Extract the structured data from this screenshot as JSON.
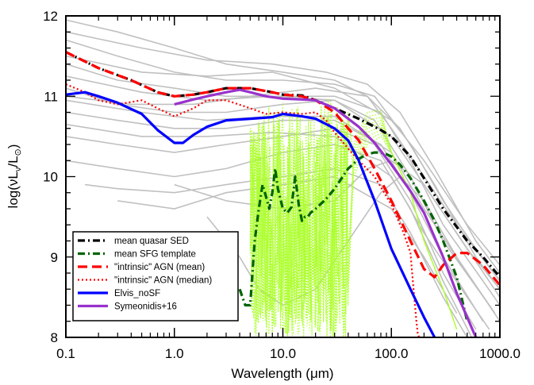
{
  "chart_data": {
    "type": "line",
    "title": "",
    "xlabel": "Wavelength (μm)",
    "ylabel": "log(νL_ν/L_⊙)",
    "xscale": "log",
    "xlim": [
      0.1,
      1000.0
    ],
    "ylim": [
      8,
      12
    ],
    "x_tick_labels": [
      "0.1",
      "1.0",
      "10.0",
      "100.0",
      "1000.0"
    ],
    "y_tick_labels": [
      "8",
      "9",
      "10",
      "11",
      "12"
    ],
    "grid": false,
    "legend_position": "lower-left",
    "series": [
      {
        "name": "mean quasar SED",
        "color": "#000000",
        "style": "dash-dot",
        "x": [
          0.1,
          0.2,
          0.4,
          0.7,
          1.0,
          1.5,
          2.0,
          3.0,
          5.0,
          8.0,
          10.0,
          15.0,
          20.0,
          30.0,
          50.0,
          80.0,
          100.0,
          150.0,
          200.0,
          300.0,
          500.0,
          700.0,
          1000.0
        ],
        "values": [
          11.55,
          11.35,
          11.2,
          11.05,
          11.0,
          11.02,
          11.05,
          11.1,
          11.1,
          11.05,
          11.02,
          11.01,
          10.95,
          10.85,
          10.72,
          10.58,
          10.5,
          10.25,
          9.98,
          9.6,
          9.2,
          9.0,
          8.75
        ]
      },
      {
        "name": "mean SFG template",
        "color": "#006400",
        "style": "dash-dot",
        "x": [
          4.0,
          4.5,
          5.0,
          5.5,
          6.0,
          6.5,
          7.0,
          7.5,
          8.0,
          8.5,
          9.0,
          10.0,
          11.0,
          12.0,
          13.0,
          14.0,
          15.0,
          16.0,
          17.0,
          18.0,
          20.0,
          25.0,
          30.0,
          40.0,
          50.0,
          60.0,
          70.0,
          80.0,
          90.0,
          100.0,
          120.0,
          150.0,
          200.0,
          250.0,
          300.0,
          400.0,
          500.0
        ],
        "values": [
          8.6,
          8.4,
          8.4,
          9.2,
          9.6,
          9.9,
          9.75,
          9.6,
          9.8,
          10.1,
          9.85,
          9.6,
          9.55,
          9.62,
          10.0,
          9.65,
          9.45,
          9.5,
          9.5,
          9.55,
          9.6,
          9.72,
          9.85,
          10.1,
          10.22,
          10.28,
          10.3,
          10.3,
          10.28,
          10.25,
          10.15,
          9.98,
          9.7,
          9.45,
          9.2,
          8.75,
          8.2
        ]
      },
      {
        "name": "\"intrinsic\" AGN (mean)",
        "color": "#ff0000",
        "style": "dash",
        "x": [
          0.1,
          0.2,
          0.4,
          0.7,
          1.0,
          1.5,
          2.0,
          3.0,
          5.0,
          8.0,
          10.0,
          15.0,
          20.0,
          30.0,
          40.0,
          50.0,
          70.0,
          100.0,
          150.0,
          200.0,
          250.0,
          300.0,
          400.0,
          500.0,
          700.0,
          1000.0
        ],
        "values": [
          11.55,
          11.35,
          11.2,
          11.05,
          11.0,
          11.02,
          11.05,
          11.1,
          11.1,
          11.05,
          11.02,
          11.0,
          10.95,
          10.8,
          10.6,
          10.45,
          10.1,
          9.7,
          9.2,
          8.85,
          8.75,
          8.9,
          9.05,
          9.05,
          8.9,
          8.65
        ]
      },
      {
        "name": "\"intrinsic\" AGN (median)",
        "color": "#ff0000",
        "style": "dotted",
        "x": [
          0.1,
          0.15,
          0.2,
          0.3,
          0.5,
          0.7,
          1.0,
          1.5,
          2.0,
          3.0,
          5.0,
          7.0,
          10.0,
          15.0,
          20.0,
          25.0,
          30.0,
          40.0,
          50.0,
          70.0,
          100.0,
          130.0,
          150.0,
          160.0,
          170.0,
          175.0,
          180.0
        ],
        "values": [
          11.15,
          11.05,
          10.95,
          10.9,
          10.95,
          10.85,
          10.75,
          10.85,
          10.95,
          10.95,
          10.85,
          10.78,
          10.8,
          10.78,
          10.8,
          10.7,
          10.55,
          10.35,
          10.2,
          10.0,
          9.65,
          9.3,
          9.05,
          8.6,
          8.2,
          8.05,
          8.0
        ]
      },
      {
        "name": "Elvis_noSF",
        "color": "#0000ff",
        "style": "solid",
        "x": [
          0.1,
          0.15,
          0.2,
          0.3,
          0.5,
          0.7,
          1.0,
          1.2,
          1.5,
          2.0,
          3.0,
          5.0,
          8.0,
          10.0,
          15.0,
          20.0,
          30.0,
          40.0,
          50.0,
          70.0,
          100.0,
          150.0,
          200.0,
          250.0
        ],
        "values": [
          11.02,
          11.05,
          11.0,
          10.92,
          10.78,
          10.58,
          10.42,
          10.42,
          10.52,
          10.62,
          10.7,
          10.72,
          10.74,
          10.78,
          10.75,
          10.72,
          10.6,
          10.45,
          10.2,
          9.7,
          9.1,
          8.6,
          8.25,
          8.0
        ]
      },
      {
        "name": "Symeonidis+16",
        "color": "#9932cc",
        "style": "solid",
        "x": [
          1.0,
          1.5,
          2.0,
          3.0,
          4.0,
          5.0,
          7.0,
          10.0,
          15.0,
          20.0,
          30.0,
          50.0,
          70.0,
          100.0,
          150.0,
          200.0,
          300.0,
          400.0,
          500.0,
          600.0
        ],
        "values": [
          10.9,
          10.96,
          11.0,
          11.05,
          11.08,
          11.05,
          11.0,
          10.97,
          10.96,
          10.95,
          10.85,
          10.62,
          10.42,
          10.15,
          9.82,
          9.55,
          9.0,
          8.55,
          8.25,
          8.0
        ]
      }
    ]
  }
}
